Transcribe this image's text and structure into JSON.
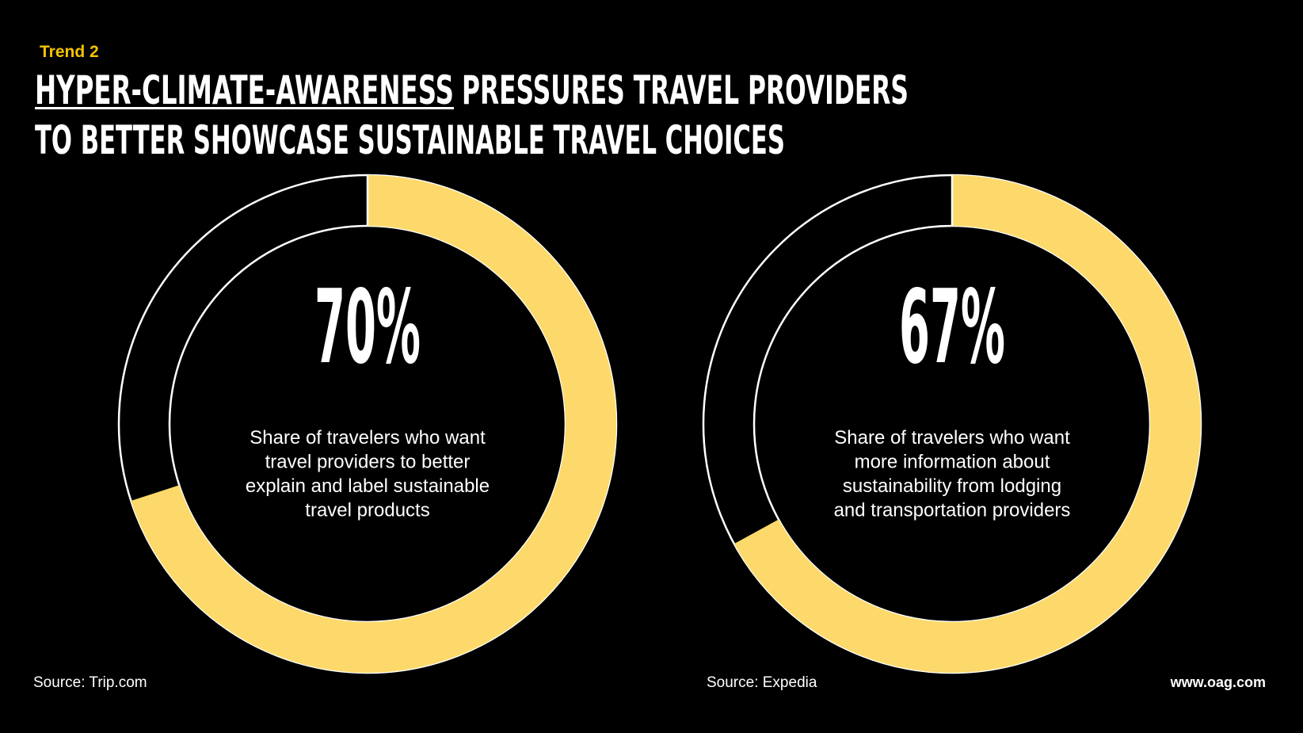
{
  "header": {
    "kicker": "Trend 2",
    "title_underlined": "HYPER-CLIMATE-AWARENESS",
    "title_rest": "PRESSURES TRAVEL PROVIDERS",
    "title_line2": "TO BETTER SHOWCASE SUSTAINABLE TRAVEL CHOICES"
  },
  "chart_data": [
    {
      "type": "donut",
      "values": [
        70
      ],
      "value_labels": [
        "70%"
      ],
      "color": "#fcd96a",
      "description_lines": [
        "Share of travelers who want",
        "travel providers to better",
        "explain and label sustainable",
        "travel products"
      ],
      "source": "Source: Trip.com"
    },
    {
      "type": "donut",
      "values": [
        67
      ],
      "value_labels": [
        "67%"
      ],
      "color": "#fcd96a",
      "description_lines": [
        "Share of travelers who want",
        "more information about",
        "sustainability from lodging",
        "and transportation providers"
      ],
      "source": "Source: Expedia"
    }
  ],
  "footer": {
    "url": "www.oag.com"
  }
}
